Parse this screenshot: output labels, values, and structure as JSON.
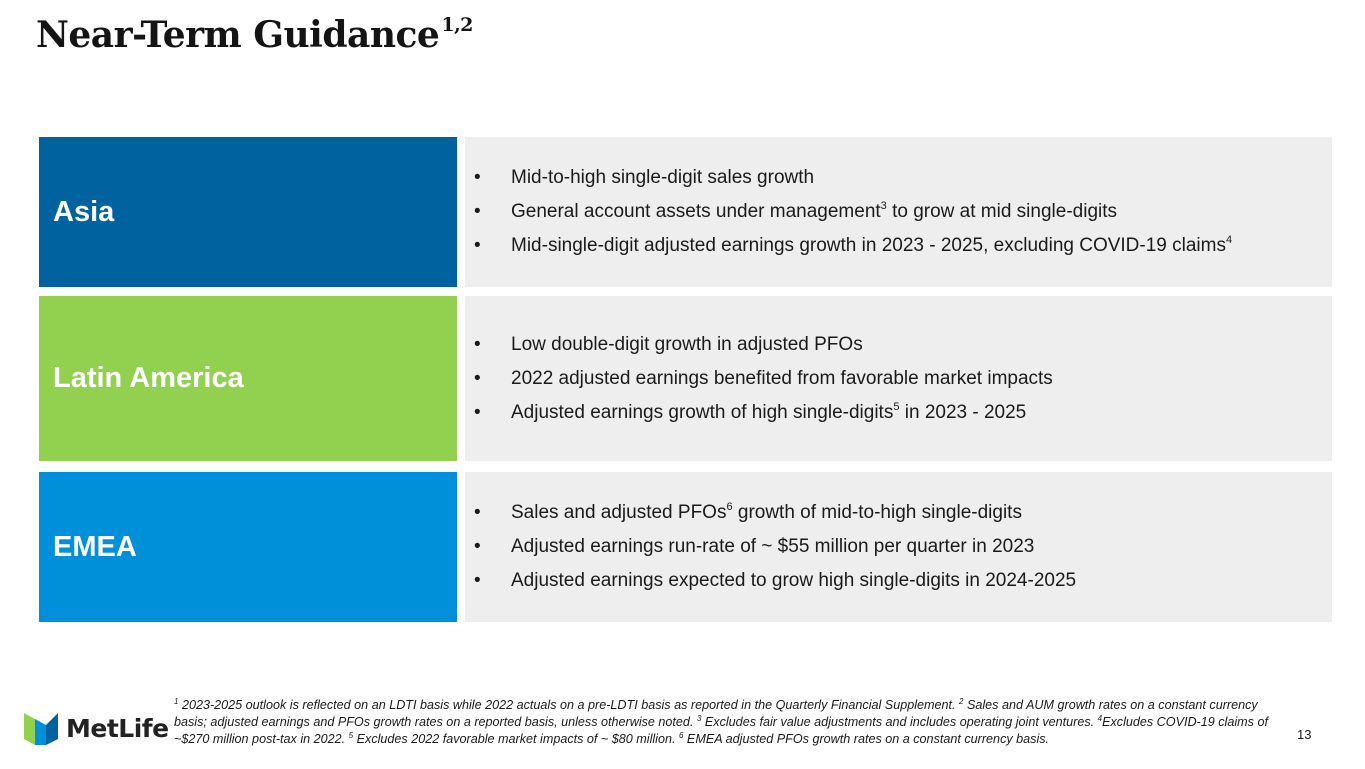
{
  "title": {
    "text": "Near-Term Guidance",
    "superscript": "1,2"
  },
  "rows": [
    {
      "region": "Asia",
      "color": "#00629f",
      "bullets": [
        {
          "marker": "•",
          "text": "Mid-to-high single-digit sales growth",
          "sup": "",
          "after": ""
        },
        {
          "marker": "•",
          "text": "General account assets under management",
          "sup": "3",
          "after": " to grow at mid single-digits"
        },
        {
          "marker": "•",
          "text": "Mid-single-digit adjusted earnings growth in 2023 - 2025, excluding COVID-19 claims",
          "sup": "4",
          "after": ""
        }
      ]
    },
    {
      "region": "Latin America",
      "color": "#92d050",
      "bullets": [
        {
          "marker": "•",
          "text": "Low double-digit growth in adjusted PFOs",
          "sup": "",
          "after": ""
        },
        {
          "marker": "•",
          "text": "2022 adjusted earnings benefited from favorable market impacts",
          "sup": "",
          "after": ""
        },
        {
          "marker": "•",
          "text": "Adjusted earnings growth of high single-digits",
          "sup": "5",
          "after": " in 2023 - 2025"
        }
      ]
    },
    {
      "region": "EMEA",
      "color": "#0090da",
      "bullets": [
        {
          "marker": "•",
          "text": "Sales and adjusted PFOs",
          "sup": "6",
          "after": " growth of mid-to-high single-digits"
        },
        {
          "marker": "•",
          "text": "Adjusted earnings run-rate of ~ $55 million per quarter in 2023",
          "sup": "",
          "after": ""
        },
        {
          "marker": "•",
          "text": "Adjusted earnings expected to grow high single-digits in 2024-2025",
          "sup": "",
          "after": ""
        }
      ]
    }
  ],
  "footnotes": {
    "n1": "1",
    "t1": " 2023-2025 outlook is reflected on an LDTI basis while 2022 actuals on a pre-LDTI basis as reported in the Quarterly Financial Supplement. ",
    "n2": "2",
    "t2": " Sales and AUM growth rates on a constant currency basis; adjusted earnings and PFOs growth rates on a reported basis, unless otherwise noted. ",
    "n3": "3",
    "t3": " Excludes fair value adjustments and includes operating joint ventures. ",
    "n4": "4",
    "t4": "Excludes COVID-19 claims of ~$270 million post-tax in 2022. ",
    "n5": "5",
    "t5": " Excludes 2022 favorable market impacts of ~ $80 million. ",
    "n6": "6",
    "t6": " EMEA adjusted PFOs growth rates on a constant currency basis."
  },
  "logo": {
    "text": "MetLife",
    "icon": "metlife-m-icon",
    "colors": [
      "#92d050",
      "#0090da",
      "#00629f"
    ]
  },
  "page_number": "13"
}
